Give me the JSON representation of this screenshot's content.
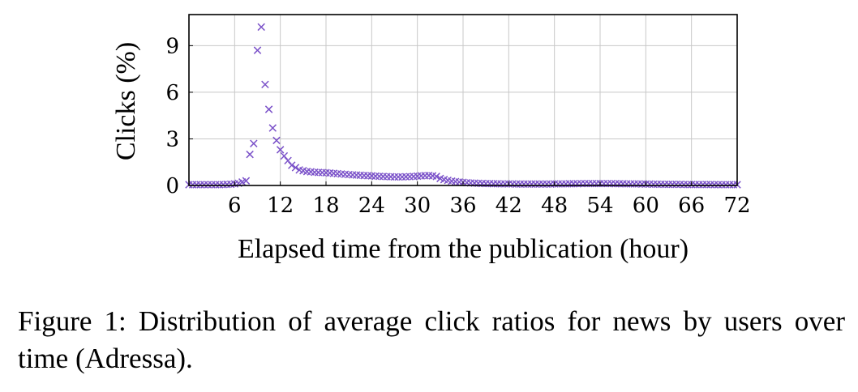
{
  "chart_data": {
    "type": "scatter",
    "title": "",
    "xlabel": "Elapsed time from the publication (hour)",
    "ylabel": "Clicks (%)",
    "xlim": [
      0,
      72
    ],
    "ylim": [
      0,
      11
    ],
    "xticks": [
      6,
      12,
      18,
      24,
      30,
      36,
      42,
      48,
      54,
      60,
      66,
      72
    ],
    "yticks": [
      0,
      3,
      6,
      9
    ],
    "grid": true,
    "marker": "x",
    "color": "#7b52c9",
    "series": [
      {
        "points": [
          [
            0.0,
            0.05
          ],
          [
            0.5,
            0.05
          ],
          [
            1.0,
            0.05
          ],
          [
            1.5,
            0.05
          ],
          [
            2.0,
            0.05
          ],
          [
            2.5,
            0.05
          ],
          [
            3.0,
            0.05
          ],
          [
            3.5,
            0.05
          ],
          [
            4.0,
            0.05
          ],
          [
            4.5,
            0.06
          ],
          [
            5.0,
            0.07
          ],
          [
            5.5,
            0.08
          ],
          [
            6.0,
            0.1
          ],
          [
            6.5,
            0.14
          ],
          [
            7.0,
            0.22
          ],
          [
            7.5,
            0.3
          ],
          [
            8.0,
            2.0
          ],
          [
            8.5,
            2.7
          ],
          [
            9.0,
            8.7
          ],
          [
            9.5,
            10.2
          ],
          [
            10.0,
            6.5
          ],
          [
            10.5,
            4.9
          ],
          [
            11.0,
            3.7
          ],
          [
            11.5,
            2.9
          ],
          [
            12.0,
            2.3
          ],
          [
            12.5,
            1.9
          ],
          [
            13.0,
            1.6
          ],
          [
            13.5,
            1.3
          ],
          [
            14.0,
            1.15
          ],
          [
            14.5,
            1.0
          ],
          [
            15.0,
            0.95
          ],
          [
            15.5,
            0.9
          ],
          [
            16.0,
            0.88
          ],
          [
            16.5,
            0.85
          ],
          [
            17.0,
            0.84
          ],
          [
            17.5,
            0.83
          ],
          [
            18.0,
            0.82
          ],
          [
            18.5,
            0.8
          ],
          [
            19.0,
            0.78
          ],
          [
            19.5,
            0.76
          ],
          [
            20.0,
            0.74
          ],
          [
            20.5,
            0.72
          ],
          [
            21.0,
            0.7
          ],
          [
            21.5,
            0.68
          ],
          [
            22.0,
            0.67
          ],
          [
            22.5,
            0.66
          ],
          [
            23.0,
            0.64
          ],
          [
            23.5,
            0.63
          ],
          [
            24.0,
            0.62
          ],
          [
            24.5,
            0.6
          ],
          [
            25.0,
            0.59
          ],
          [
            25.5,
            0.58
          ],
          [
            26.0,
            0.57
          ],
          [
            26.5,
            0.56
          ],
          [
            27.0,
            0.55
          ],
          [
            27.5,
            0.55
          ],
          [
            28.0,
            0.55
          ],
          [
            28.5,
            0.56
          ],
          [
            29.0,
            0.57
          ],
          [
            29.5,
            0.58
          ],
          [
            30.0,
            0.6
          ],
          [
            30.5,
            0.62
          ],
          [
            31.0,
            0.63
          ],
          [
            31.5,
            0.64
          ],
          [
            32.0,
            0.62
          ],
          [
            32.5,
            0.58
          ],
          [
            33.0,
            0.45
          ],
          [
            33.5,
            0.38
          ],
          [
            34.0,
            0.33
          ],
          [
            34.5,
            0.28
          ],
          [
            35.0,
            0.25
          ],
          [
            35.5,
            0.22
          ],
          [
            36.0,
            0.2
          ],
          [
            36.5,
            0.18
          ],
          [
            37.0,
            0.16
          ],
          [
            37.5,
            0.15
          ],
          [
            38.0,
            0.14
          ],
          [
            38.5,
            0.13
          ],
          [
            39.0,
            0.12
          ],
          [
            39.5,
            0.12
          ],
          [
            40.0,
            0.11
          ],
          [
            40.5,
            0.11
          ],
          [
            41.0,
            0.1
          ],
          [
            41.5,
            0.1
          ],
          [
            42.0,
            0.1
          ],
          [
            42.5,
            0.1
          ],
          [
            43.0,
            0.09
          ],
          [
            43.5,
            0.09
          ],
          [
            44.0,
            0.09
          ],
          [
            44.5,
            0.09
          ],
          [
            45.0,
            0.09
          ],
          [
            45.5,
            0.09
          ],
          [
            46.0,
            0.09
          ],
          [
            46.5,
            0.09
          ],
          [
            47.0,
            0.09
          ],
          [
            47.5,
            0.09
          ],
          [
            48.0,
            0.1
          ],
          [
            48.5,
            0.1
          ],
          [
            49.0,
            0.1
          ],
          [
            49.5,
            0.1
          ],
          [
            50.0,
            0.11
          ],
          [
            50.5,
            0.11
          ],
          [
            51.0,
            0.11
          ],
          [
            51.5,
            0.12
          ],
          [
            52.0,
            0.12
          ],
          [
            52.5,
            0.12
          ],
          [
            53.0,
            0.12
          ],
          [
            53.5,
            0.12
          ],
          [
            54.0,
            0.12
          ],
          [
            54.5,
            0.12
          ],
          [
            55.0,
            0.12
          ],
          [
            55.5,
            0.12
          ],
          [
            56.0,
            0.11
          ],
          [
            56.5,
            0.11
          ],
          [
            57.0,
            0.11
          ],
          [
            57.5,
            0.1
          ],
          [
            58.0,
            0.1
          ],
          [
            58.5,
            0.1
          ],
          [
            59.0,
            0.1
          ],
          [
            59.5,
            0.09
          ],
          [
            60.0,
            0.09
          ],
          [
            60.5,
            0.09
          ],
          [
            61.0,
            0.08
          ],
          [
            61.5,
            0.08
          ],
          [
            62.0,
            0.08
          ],
          [
            62.5,
            0.07
          ],
          [
            63.0,
            0.07
          ],
          [
            63.5,
            0.07
          ],
          [
            64.0,
            0.07
          ],
          [
            64.5,
            0.07
          ],
          [
            65.0,
            0.06
          ],
          [
            65.5,
            0.06
          ],
          [
            66.0,
            0.06
          ],
          [
            66.5,
            0.06
          ],
          [
            67.0,
            0.06
          ],
          [
            67.5,
            0.06
          ],
          [
            68.0,
            0.06
          ],
          [
            68.5,
            0.06
          ],
          [
            69.0,
            0.05
          ],
          [
            69.5,
            0.05
          ],
          [
            70.0,
            0.05
          ],
          [
            70.5,
            0.05
          ],
          [
            71.0,
            0.05
          ],
          [
            71.5,
            0.05
          ],
          [
            72.0,
            0.05
          ]
        ]
      }
    ]
  },
  "caption": "Figure 1: Distribution of average click ratios for news by users over time (Adressa)."
}
